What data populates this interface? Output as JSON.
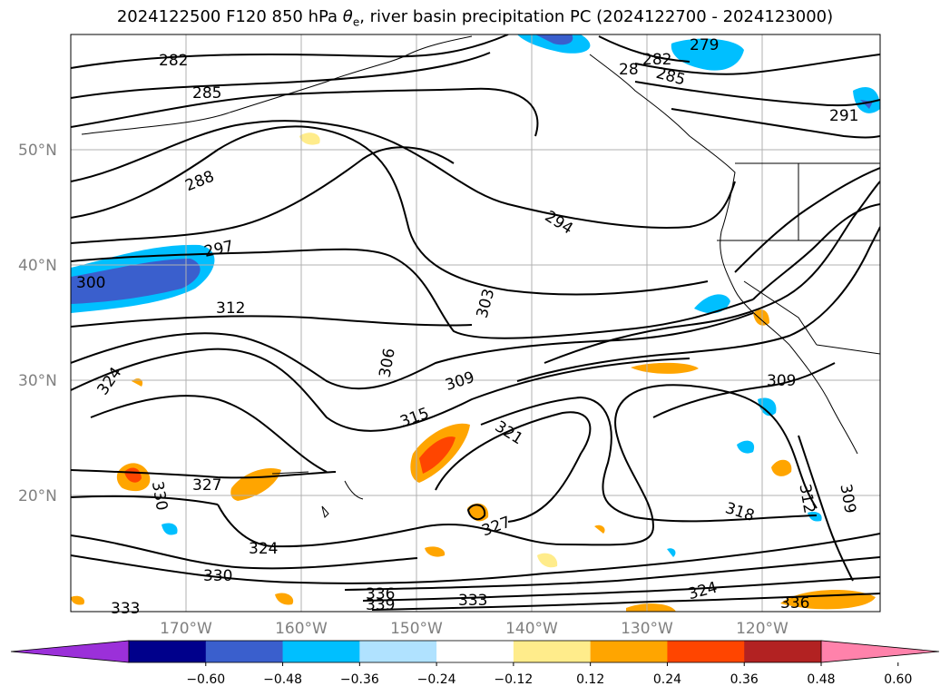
{
  "title_main": "2024122500 F120 850 hPa ",
  "title_theta": "θ",
  "title_sub": "e",
  "title_rest": ", river basin precipitation PC (2024122700 - 2024123000)",
  "map": {
    "lat_labels": [
      "50°N",
      "40°N",
      "30°N",
      "20°N"
    ],
    "lon_labels": [
      "170°W",
      "160°W",
      "150°W",
      "140°W",
      "130°W",
      "120°W"
    ],
    "contour_labels": [
      "282",
      "285",
      "288",
      "297",
      "300",
      "312",
      "324",
      "330",
      "327",
      "333",
      "324",
      "330",
      "306",
      "303",
      "294",
      "309",
      "315",
      "321",
      "327",
      "336",
      "339",
      "333",
      "318",
      "324",
      "309",
      "312",
      "309",
      "336",
      "282",
      "285",
      "279",
      "291",
      "28"
    ]
  },
  "colorbar": {
    "colors": [
      "#9b30d9",
      "#00008b",
      "#3a5fcd",
      "#00bfff",
      "#b0e2ff",
      "#ffffff",
      "#ffec8b",
      "#ffa500",
      "#ff4500",
      "#b22222",
      "#ff82ab"
    ],
    "ticks": [
      "−0.60",
      "−0.48",
      "−0.36",
      "−0.24",
      "−0.12",
      "0.12",
      "0.24",
      "0.36",
      "0.48",
      "0.60"
    ]
  }
}
